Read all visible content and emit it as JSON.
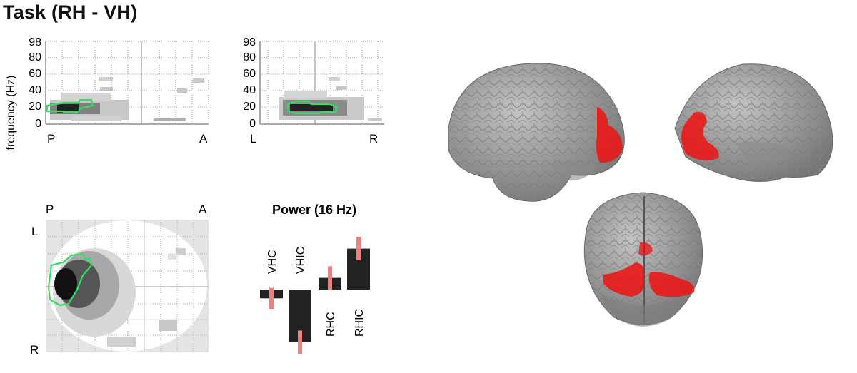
{
  "figure": {
    "title": "Task (RH - VH)",
    "spectrogram_pa": {
      "ylabel": "frequency (Hz)",
      "y_ticks": [
        "98",
        "80",
        "60",
        "40",
        "20",
        "0"
      ],
      "x_left": "P",
      "x_right": "A"
    },
    "spectrogram_lr": {
      "y_ticks": [
        "98",
        "80",
        "60",
        "40",
        "20",
        "0"
      ],
      "x_left": "L",
      "x_right": "R"
    },
    "topomap": {
      "top_left": "P",
      "top_right": "A",
      "left_top": "L",
      "left_bottom": "R"
    },
    "power": {
      "title": "Power (16 Hz)",
      "labels": [
        "VHC",
        "VHIC",
        "RHC",
        "RHIC"
      ]
    },
    "colors": {
      "bar": "#222222",
      "error_bar": "#f08080",
      "outline": "#33dd66",
      "activation": "#ee1111",
      "brain": "#9a9a9a"
    }
  },
  "chart_data": {
    "type": "bar",
    "title": "Power (16 Hz)",
    "categories": [
      "VHC",
      "VHIC",
      "RHC",
      "RHIC"
    ],
    "values": [
      -0.15,
      -0.9,
      0.2,
      0.7
    ],
    "errors": [
      0.18,
      0.2,
      0.2,
      0.2
    ]
  }
}
